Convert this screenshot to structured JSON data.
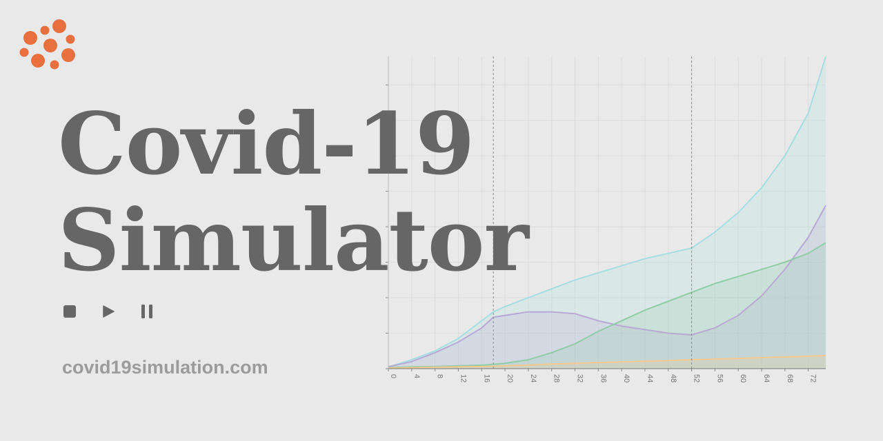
{
  "app": {
    "title_line1": "Covid-19",
    "title_line2": "Simulator",
    "url": "covid19simulation.com",
    "accent_color": "#e8703f"
  },
  "controls": [
    {
      "name": "stop-icon",
      "label": "stop"
    },
    {
      "name": "play-icon",
      "label": "play"
    },
    {
      "name": "pause-icon",
      "label": "pause"
    }
  ],
  "chart_data": {
    "type": "area",
    "x_ticks": [
      0,
      4,
      8,
      12,
      16,
      20,
      24,
      28,
      32,
      36,
      40,
      44,
      48,
      52,
      56,
      60,
      64,
      68,
      72
    ],
    "xlim": [
      0,
      75
    ],
    "ylim": [
      0,
      88
    ],
    "grid": true,
    "markers_x": [
      18,
      52
    ],
    "x": [
      0,
      4,
      8,
      12,
      16,
      18,
      20,
      24,
      28,
      32,
      36,
      40,
      44,
      48,
      52,
      56,
      60,
      64,
      68,
      72,
      75
    ],
    "series": [
      {
        "color": "#a6dde0",
        "values": [
          0.5,
          2.5,
          5,
          8.5,
          13.5,
          16,
          17.5,
          20,
          22.5,
          25,
          27,
          29,
          31,
          32.5,
          34,
          38.5,
          44,
          51,
          60,
          72,
          88
        ]
      },
      {
        "color": "#b7a9d4",
        "values": [
          0.5,
          2,
          4.5,
          7.5,
          11.5,
          14.5,
          15,
          16,
          16,
          15.5,
          13.5,
          12,
          11,
          10,
          9.5,
          11.5,
          15,
          20.5,
          28,
          37,
          46
        ]
      },
      {
        "color": "#8fcca6",
        "values": [
          0.3,
          0.5,
          0.6,
          0.8,
          1,
          1.2,
          1.5,
          2.5,
          4.5,
          7,
          10.5,
          13.5,
          16.5,
          19,
          21.5,
          24,
          26,
          28,
          30,
          32.5,
          35.5
        ]
      },
      {
        "color": "#f6c98f",
        "values": [
          0.2,
          0.3,
          0.4,
          0.5,
          0.6,
          0.7,
          0.8,
          1,
          1.3,
          1.5,
          1.7,
          1.9,
          2.1,
          2.3,
          2.5,
          2.7,
          2.9,
          3.1,
          3.3,
          3.5,
          3.7
        ]
      }
    ]
  }
}
